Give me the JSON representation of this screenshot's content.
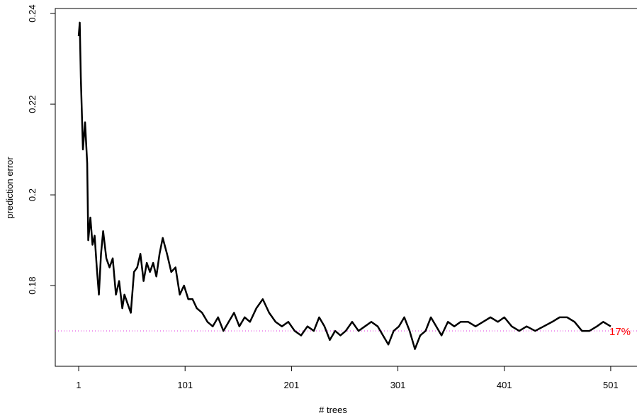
{
  "chart_data": {
    "type": "line",
    "x_label": "# trees",
    "y_label": "prediction error",
    "xlim": [
      -21,
      525.7
    ],
    "ylim": [
      0.1622,
      0.2411
    ],
    "xticks": [
      1,
      101,
      201,
      301,
      401,
      501
    ],
    "yticks": [
      0.18,
      0.2,
      0.22,
      0.24
    ],
    "grid": false,
    "reference_line": {
      "value": 0.17,
      "label": "17%",
      "color": "#e040e0",
      "label_color": "#ff0000"
    },
    "x": [
      1,
      2,
      3,
      5,
      7,
      9,
      10,
      12,
      14,
      16,
      18,
      20,
      22,
      24,
      27,
      30,
      33,
      36,
      39,
      42,
      44,
      47,
      50,
      53,
      56,
      59,
      62,
      65,
      68,
      71,
      74,
      77,
      80,
      84,
      88,
      92,
      96,
      100,
      104,
      108,
      112,
      117,
      122,
      127,
      132,
      137,
      142,
      147,
      152,
      157,
      162,
      168,
      174,
      180,
      186,
      192,
      198,
      204,
      210,
      216,
      222,
      227,
      232,
      237,
      242,
      247,
      252,
      258,
      264,
      270,
      276,
      282,
      287,
      292,
      297,
      302,
      307,
      312,
      317,
      322,
      327,
      332,
      337,
      342,
      348,
      354,
      360,
      367,
      374,
      381,
      388,
      395,
      401,
      408,
      415,
      422,
      430,
      438,
      446,
      453,
      460,
      467,
      474,
      481,
      488,
      494,
      501
    ],
    "series": [
      {
        "name": "prediction error",
        "color": "#000000",
        "values": [
          0.235,
          0.238,
          0.226,
          0.21,
          0.216,
          0.207,
          0.19,
          0.195,
          0.189,
          0.191,
          0.184,
          0.178,
          0.187,
          0.192,
          0.186,
          0.184,
          0.186,
          0.178,
          0.181,
          0.175,
          0.178,
          0.176,
          0.174,
          0.183,
          0.184,
          0.187,
          0.181,
          0.185,
          0.183,
          0.185,
          0.182,
          0.187,
          0.1905,
          0.187,
          0.183,
          0.184,
          0.178,
          0.18,
          0.177,
          0.177,
          0.175,
          0.174,
          0.172,
          0.171,
          0.173,
          0.17,
          0.172,
          0.174,
          0.171,
          0.173,
          0.172,
          0.175,
          0.177,
          0.174,
          0.172,
          0.171,
          0.172,
          0.17,
          0.169,
          0.171,
          0.17,
          0.173,
          0.171,
          0.168,
          0.17,
          0.169,
          0.17,
          0.172,
          0.17,
          0.171,
          0.172,
          0.171,
          0.169,
          0.167,
          0.17,
          0.171,
          0.173,
          0.17,
          0.166,
          0.169,
          0.17,
          0.173,
          0.171,
          0.169,
          0.172,
          0.171,
          0.172,
          0.172,
          0.171,
          0.172,
          0.173,
          0.172,
          0.173,
          0.171,
          0.17,
          0.171,
          0.17,
          0.171,
          0.172,
          0.173,
          0.173,
          0.172,
          0.17,
          0.17,
          0.171,
          0.172,
          0.171
        ]
      }
    ]
  }
}
